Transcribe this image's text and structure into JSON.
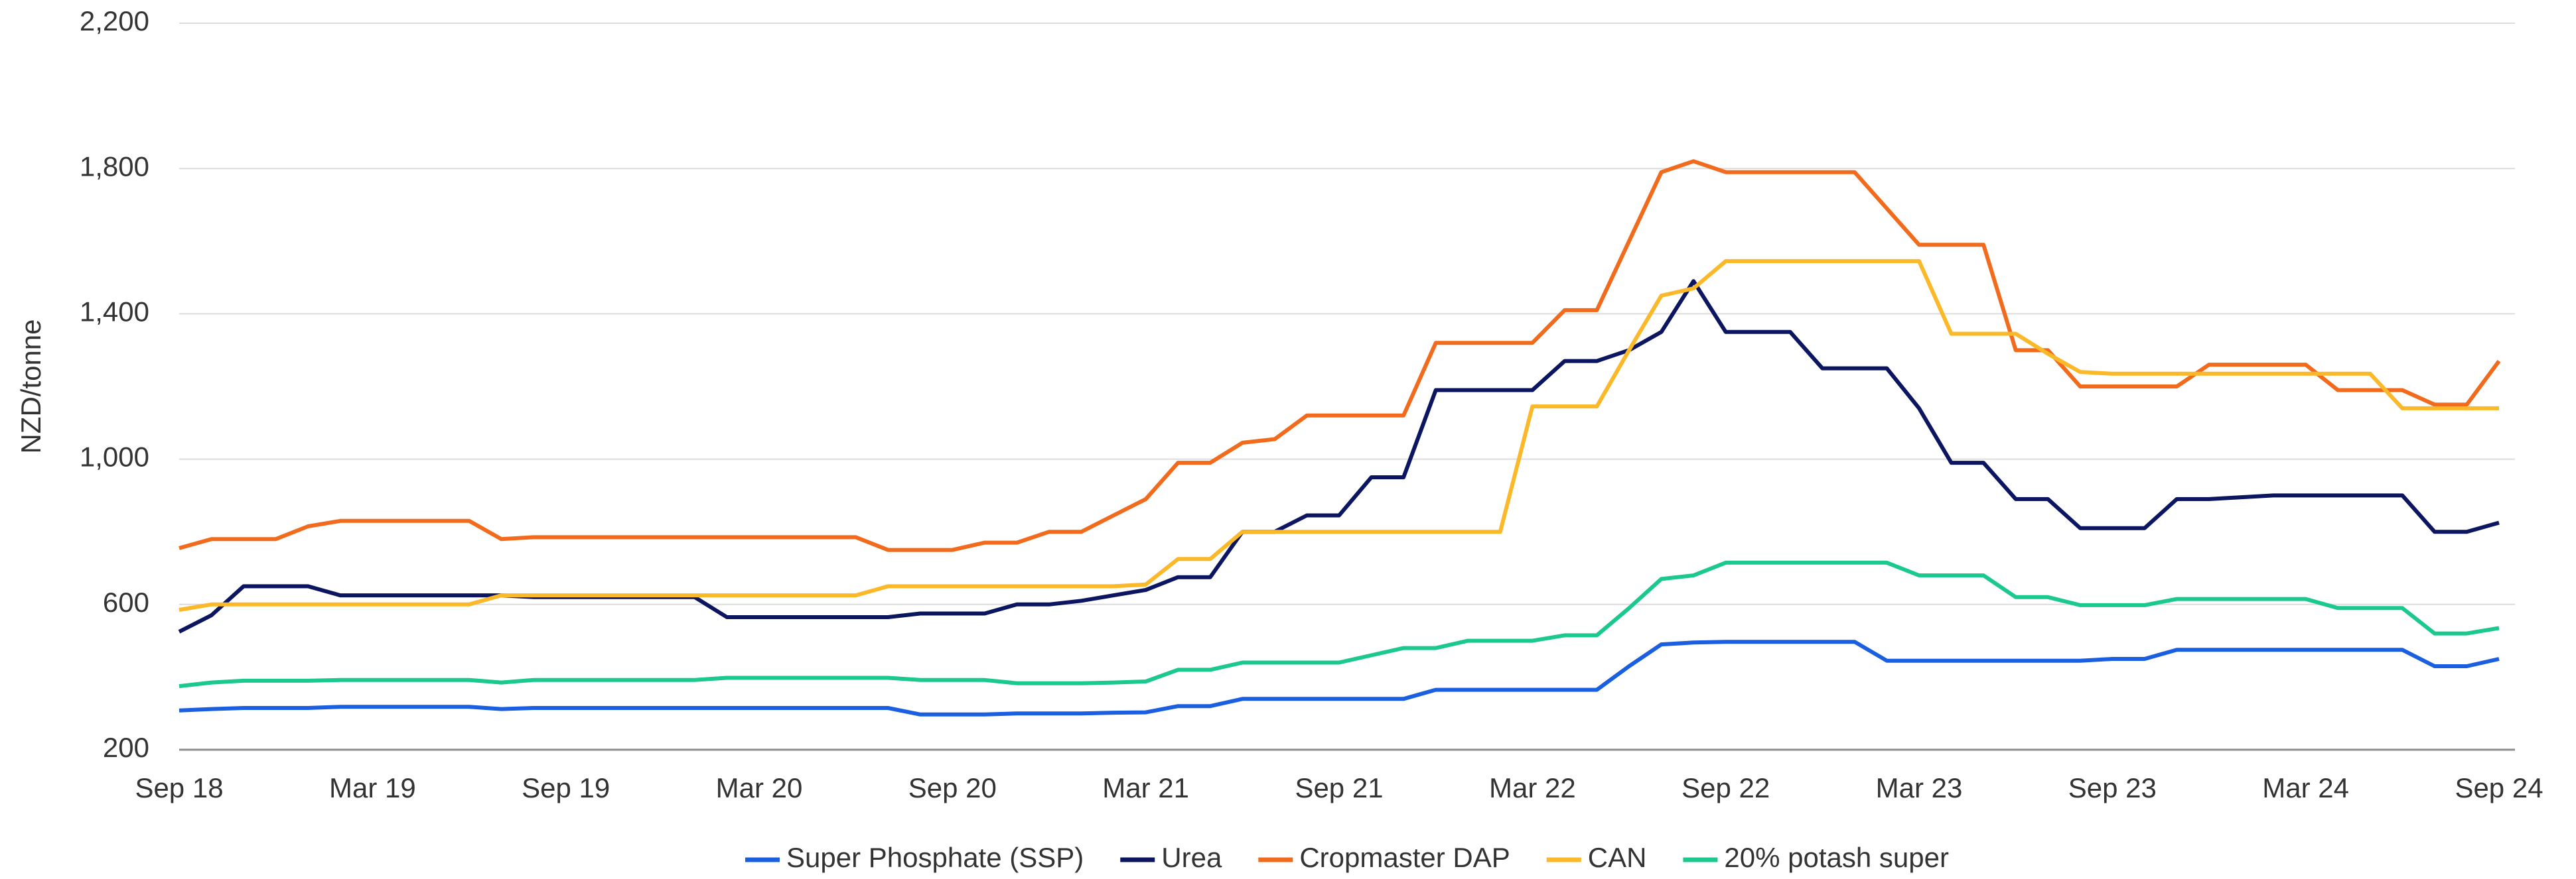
{
  "chart_data": {
    "type": "line",
    "y_label": "NZD/tonne",
    "categories": [
      "Sep 18",
      null,
      null,
      null,
      null,
      null,
      "Mar 19",
      null,
      null,
      null,
      null,
      null,
      "Sep 19",
      null,
      null,
      null,
      null,
      null,
      "Mar 20",
      null,
      null,
      null,
      null,
      null,
      "Sep 20",
      null,
      null,
      null,
      null,
      null,
      "Mar 21",
      null,
      null,
      null,
      null,
      null,
      "Sep 21",
      null,
      null,
      null,
      null,
      null,
      "Mar 22",
      null,
      null,
      null,
      null,
      null,
      "Sep 22",
      null,
      null,
      null,
      null,
      null,
      "Mar 23",
      null,
      null,
      null,
      null,
      null,
      "Sep 23",
      null,
      null,
      null,
      null,
      null,
      "Mar 24",
      null,
      null,
      null,
      null,
      null,
      "Sep 24"
    ],
    "ylim": [
      200,
      2200
    ],
    "yticks": [
      200,
      600,
      {
        "value": 1000,
        "label": "1,000"
      },
      {
        "value": 1400,
        "label": "1,400"
      },
      {
        "value": 1800,
        "label": "1,800"
      },
      {
        "value": 2200,
        "label": "2,200"
      }
    ],
    "grid": true,
    "legend": "bottom",
    "series": [
      {
        "name": "Super Phosphate (SSP)",
        "color": "#1a5fe0",
        "values": [
          308,
          312,
          315,
          315,
          315,
          318,
          318,
          318,
          318,
          318,
          312,
          315,
          315,
          315,
          315,
          315,
          315,
          315,
          315,
          315,
          315,
          315,
          315,
          297,
          297,
          297,
          300,
          300,
          300,
          302,
          303,
          320,
          320,
          340,
          340,
          340,
          340,
          340,
          340,
          365,
          365,
          365,
          365,
          365,
          365,
          430,
          490,
          495,
          497,
          497,
          497,
          497,
          497,
          445,
          445,
          445,
          445,
          445,
          445,
          445,
          450,
          450,
          475,
          475,
          475,
          475,
          475,
          475,
          475,
          475,
          430,
          430,
          450
        ]
      },
      {
        "name": "Urea",
        "color": "#0b1560",
        "values": [
          525,
          570,
          650,
          650,
          650,
          625,
          625,
          625,
          625,
          625,
          625,
          620,
          620,
          620,
          620,
          620,
          620,
          565,
          565,
          565,
          565,
          565,
          565,
          575,
          575,
          575,
          600,
          600,
          610,
          625,
          640,
          675,
          675,
          800,
          800,
          845,
          845,
          950,
          950,
          1190,
          1190,
          1190,
          1190,
          1270,
          1270,
          1300,
          1350,
          1490,
          1350,
          1350,
          1350,
          1250,
          1250,
          1250,
          1140,
          990,
          990,
          890,
          890,
          810,
          810,
          810,
          890,
          890,
          895,
          900,
          900,
          900,
          900,
          900,
          800,
          800,
          825
        ]
      },
      {
        "name": "Cropmaster DAP",
        "color": "#f26b1d",
        "values": [
          755,
          780,
          780,
          780,
          815,
          830,
          830,
          830,
          830,
          830,
          780,
          785,
          785,
          785,
          785,
          785,
          785,
          785,
          785,
          785,
          785,
          785,
          750,
          750,
          750,
          770,
          770,
          800,
          800,
          845,
          890,
          990,
          990,
          1045,
          1055,
          1120,
          1120,
          1120,
          1120,
          1320,
          1320,
          1320,
          1320,
          1410,
          1410,
          1600,
          1790,
          1820,
          1790,
          1790,
          1790,
          1790,
          1790,
          1690,
          1590,
          1590,
          1590,
          1300,
          1300,
          1200,
          1200,
          1200,
          1200,
          1260,
          1260,
          1260,
          1260,
          1190,
          1190,
          1190,
          1150,
          1150,
          1270
        ]
      },
      {
        "name": "CAN",
        "color": "#fbb829",
        "values": [
          585,
          600,
          600,
          600,
          600,
          600,
          600,
          600,
          600,
          600,
          625,
          625,
          625,
          625,
          625,
          625,
          625,
          625,
          625,
          625,
          625,
          625,
          650,
          650,
          650,
          650,
          650,
          650,
          650,
          650,
          655,
          725,
          725,
          800,
          800,
          800,
          800,
          800,
          800,
          800,
          800,
          800,
          1145,
          1145,
          1145,
          1300,
          1450,
          1470,
          1545,
          1545,
          1545,
          1545,
          1545,
          1545,
          1545,
          1345,
          1345,
          1345,
          1290,
          1240,
          1235,
          1235,
          1235,
          1235,
          1235,
          1235,
          1235,
          1235,
          1235,
          1140,
          1140,
          1140,
          1140
        ]
      },
      {
        "name": "20% potash super",
        "color": "#1bc98e",
        "values": [
          375,
          385,
          390,
          390,
          390,
          392,
          392,
          392,
          392,
          392,
          385,
          392,
          392,
          392,
          392,
          392,
          392,
          398,
          398,
          398,
          398,
          398,
          398,
          392,
          392,
          392,
          383,
          383,
          383,
          385,
          388,
          420,
          420,
          440,
          440,
          440,
          440,
          460,
          480,
          480,
          500,
          500,
          500,
          515,
          515,
          590,
          670,
          680,
          715,
          715,
          715,
          715,
          715,
          715,
          680,
          680,
          680,
          620,
          620,
          598,
          598,
          598,
          615,
          615,
          615,
          615,
          615,
          590,
          590,
          590,
          520,
          520,
          535
        ]
      }
    ]
  }
}
